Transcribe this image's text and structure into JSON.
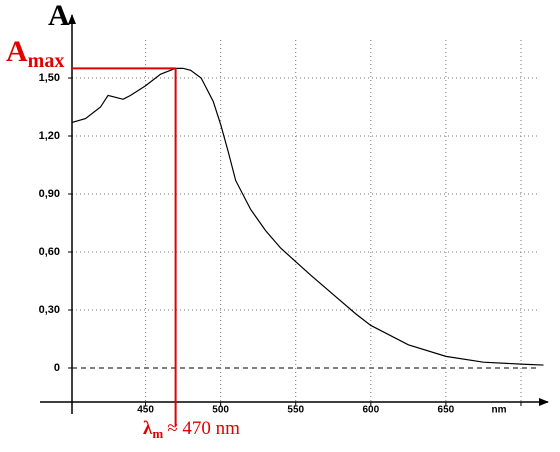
{
  "chart_data": {
    "type": "line",
    "y_label": "A",
    "amax_label": {
      "symbol": "A",
      "subscript": "max"
    },
    "lambda_label": {
      "symbol": "λ",
      "subscript": "m",
      "text": "≈ 470 nm"
    },
    "lambda_max": 470,
    "a_max": 1.55,
    "color": "#000000",
    "annotation_color": "#e00000",
    "x": [
      401,
      410,
      420,
      425,
      430,
      435,
      440,
      450,
      460,
      470,
      475,
      480,
      487,
      495,
      500,
      505,
      510,
      520,
      530,
      540,
      550,
      560,
      575,
      590,
      600,
      625,
      650,
      675,
      700,
      715
    ],
    "values": [
      1.27,
      1.29,
      1.35,
      1.41,
      1.4,
      1.39,
      1.41,
      1.46,
      1.52,
      1.55,
      1.55,
      1.54,
      1.5,
      1.38,
      1.26,
      1.12,
      0.97,
      0.82,
      0.71,
      0.62,
      0.55,
      0.48,
      0.38,
      0.28,
      0.22,
      0.12,
      0.06,
      0.03,
      0.02,
      0.015
    ],
    "xlim": [
      401,
      718
    ],
    "ylim": [
      -0.176,
      1.826
    ],
    "xticks": [
      450,
      500,
      550,
      600,
      650,
      {
        "value": 700,
        "label": "nm"
      }
    ],
    "yticks": [
      0,
      {
        "value": 0.3,
        "label": "0,30"
      },
      {
        "value": 0.6,
        "label": "0,60"
      },
      {
        "value": 0.9,
        "label": "0,90"
      },
      {
        "value": 1.2,
        "label": "1,20"
      },
      {
        "value": 1.5,
        "label": "1,50"
      }
    ],
    "grid": true
  }
}
